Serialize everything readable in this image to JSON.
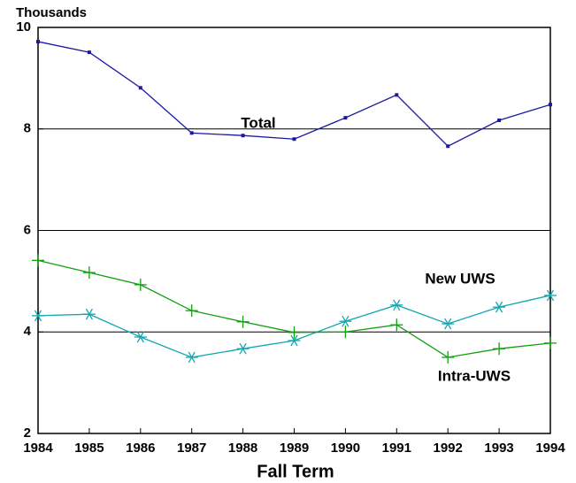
{
  "chart_data": {
    "type": "line",
    "unit_label": "Thousands",
    "x_label": "Fall Term",
    "x": [
      1984,
      1985,
      1986,
      1987,
      1988,
      1989,
      1990,
      1991,
      1992,
      1993,
      1994
    ],
    "xlim": [
      1984,
      1994
    ],
    "xticks": [
      1984,
      1985,
      1986,
      1987,
      1988,
      1989,
      1990,
      1991,
      1992,
      1993,
      1994
    ],
    "ylim": [
      2,
      10
    ],
    "yticks": [
      2,
      4,
      6,
      8,
      10
    ],
    "grid": true,
    "series": [
      {
        "name": "Total",
        "color": "#1a1aa0",
        "marker": "square",
        "values": [
          9.72,
          9.51,
          8.81,
          7.92,
          7.87,
          7.8,
          8.22,
          8.67,
          7.66,
          8.17,
          8.48
        ]
      },
      {
        "name": "New UWS",
        "color": "#10a8b0",
        "marker": "asterisk",
        "values": [
          4.32,
          4.35,
          3.9,
          3.5,
          3.67,
          3.83,
          4.21,
          4.53,
          4.16,
          4.49,
          4.72
        ]
      },
      {
        "name": "Intra-UWS",
        "color": "#10a010",
        "marker": "plus",
        "values": [
          5.41,
          5.17,
          4.93,
          4.42,
          4.2,
          3.99,
          4.0,
          4.14,
          3.5,
          3.67,
          3.78
        ]
      }
    ]
  }
}
